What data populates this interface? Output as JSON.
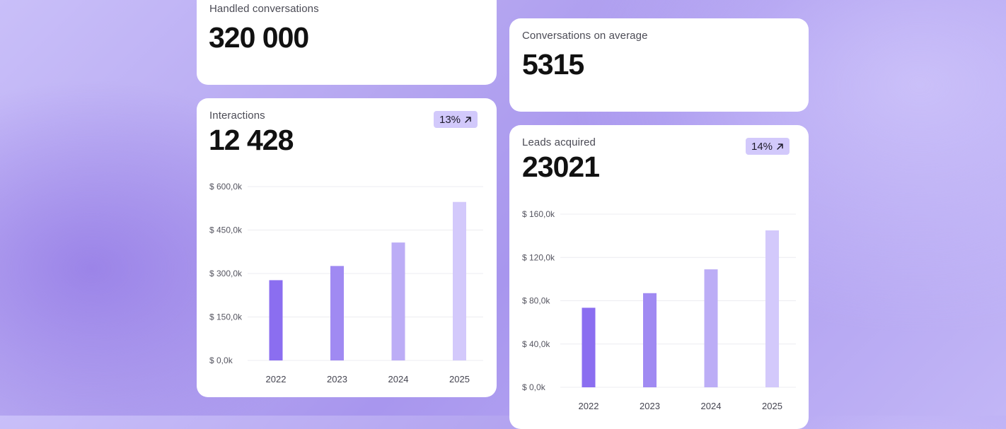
{
  "cards": {
    "handled": {
      "label": "Handled conversations",
      "value": "320 000"
    },
    "average": {
      "label": "Conversations on average",
      "value": "5315"
    },
    "interactions": {
      "label": "Interactions",
      "value": "12 428",
      "badge": "13%"
    },
    "leads": {
      "label": "Leads acquired",
      "value": "23021",
      "badge": "14%"
    }
  },
  "colors": {
    "bar_1": "#8b6ef0",
    "bar_2": "#a08af2",
    "bar_3": "#bcadf6",
    "bar_4": "#d3c9fb",
    "grid": "#ececf0",
    "badge_bg": "#d2c9fb"
  },
  "icons": {
    "trend": "arrow-up-right-icon"
  },
  "chart_data": [
    {
      "type": "bar",
      "categories": [
        "2022",
        "2023",
        "2024",
        "2025"
      ],
      "values": [
        277,
        326,
        407,
        547
      ],
      "ylim": [
        0,
        600
      ],
      "yticks": [
        0,
        150,
        300,
        450,
        600
      ],
      "ytick_labels": [
        "$ 0,0k",
        "$ 150,0k",
        "$ 300,0k",
        "$ 450,0k",
        "$ 600,0k"
      ],
      "grid": true
    },
    {
      "type": "bar",
      "categories": [
        "2022",
        "2023",
        "2024",
        "2025"
      ],
      "values": [
        73.5,
        87,
        109,
        145
      ],
      "ylim": [
        0,
        160
      ],
      "yticks": [
        0,
        40,
        80,
        120,
        160
      ],
      "ytick_labels": [
        "$ 0,0k",
        "$ 40,0k",
        "$ 80,0k",
        "$ 120,0k",
        "$ 160,0k"
      ],
      "grid": true
    }
  ]
}
